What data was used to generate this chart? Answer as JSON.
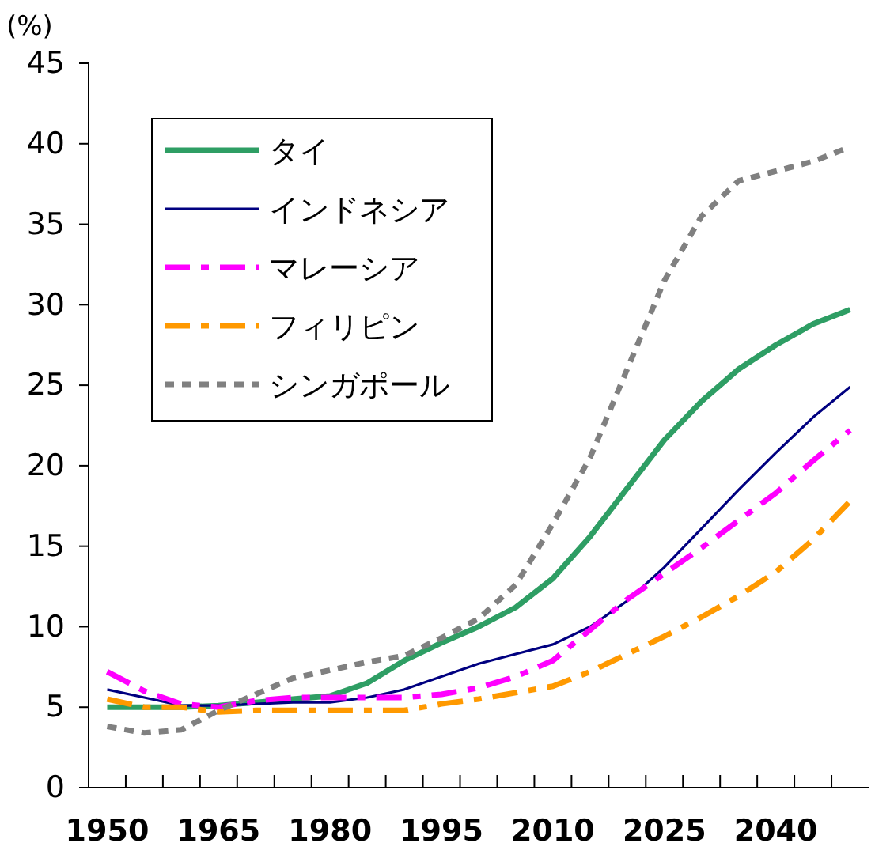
{
  "chart_data": {
    "type": "line",
    "ylabel": "(%)",
    "categories": [
      "1950",
      null,
      null,
      "1965",
      null,
      null,
      "1980",
      null,
      null,
      "1995",
      null,
      null,
      "2010",
      null,
      null,
      "2025",
      null,
      null,
      "2040",
      null,
      null
    ],
    "ylim": [
      0,
      45
    ],
    "yticks": [
      0,
      5,
      10,
      15,
      20,
      25,
      30,
      35,
      40,
      45
    ],
    "grid": false,
    "legend": "top left",
    "marker": "none",
    "series": [
      {
        "name": "タイ",
        "color": "#2e9e64",
        "line_style": "solid",
        "values": [
          5.0,
          5.0,
          5.0,
          5.1,
          5.3,
          5.5,
          5.7,
          6.5,
          7.9,
          9.0,
          10.0,
          11.2,
          13.0,
          15.6,
          18.6,
          21.6,
          24.0,
          26.0,
          27.5,
          28.8,
          29.7
        ]
      },
      {
        "name": "インドネシア",
        "color": "#000080",
        "line_style": "solid",
        "values": [
          6.1,
          5.6,
          5.1,
          5.1,
          5.2,
          5.3,
          5.3,
          5.6,
          6.1,
          6.9,
          7.7,
          8.3,
          8.9,
          10.0,
          11.6,
          13.7,
          16.1,
          18.5,
          20.8,
          23.0,
          24.9
        ]
      },
      {
        "name": "マレーシア",
        "color": "#ff00ff",
        "line_style": "dashed",
        "values": [
          7.2,
          6.0,
          5.2,
          5.0,
          5.4,
          5.6,
          5.6,
          5.6,
          5.6,
          5.8,
          6.2,
          6.9,
          7.9,
          9.8,
          11.7,
          13.3,
          14.9,
          16.6,
          18.3,
          20.3,
          22.2
        ]
      },
      {
        "name": "フィリピン",
        "color": "#ff9900",
        "line_style": "dashed",
        "values": [
          5.5,
          5.0,
          5.0,
          4.7,
          4.8,
          4.8,
          4.8,
          4.8,
          4.8,
          5.2,
          5.5,
          5.9,
          6.3,
          7.2,
          8.3,
          9.4,
          10.6,
          11.9,
          13.4,
          15.4,
          17.8
        ]
      },
      {
        "name": "シンガポール",
        "color": "#808080",
        "line_style": "dotted",
        "values": [
          3.8,
          3.4,
          3.6,
          4.8,
          5.8,
          6.8,
          7.3,
          7.8,
          8.2,
          9.3,
          10.5,
          12.6,
          16.4,
          20.5,
          26.0,
          31.5,
          35.5,
          37.7,
          38.3,
          38.9,
          39.8
        ]
      }
    ]
  }
}
